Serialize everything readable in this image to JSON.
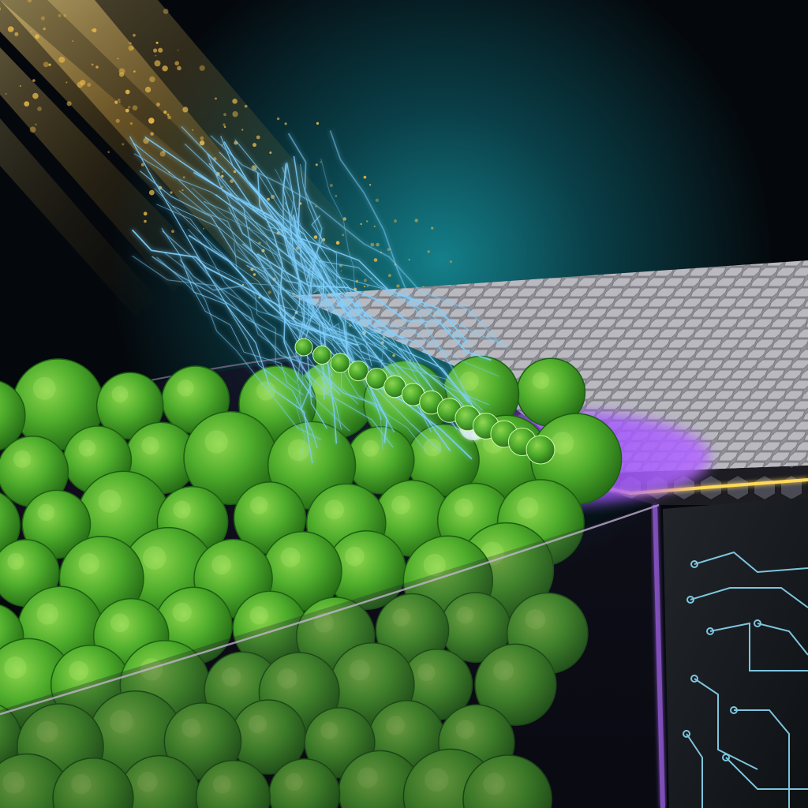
{
  "scene": {
    "kind": "illustration",
    "subjects": [
      "sunlight-rays",
      "gold-particles",
      "electric-filaments",
      "green-microbial-cells",
      "hexagonal-electrode-slab",
      "circuit-pattern"
    ]
  },
  "colors": {
    "background_dark": "#04080c",
    "background_teal_glow": "#0f6a72",
    "sunlight_gold": "#f2c85a",
    "particle_gold": "#e0b24a",
    "filament_blue": "#7fd0ff",
    "cell_green": "#4fae2c",
    "cell_green_dark": "#1d5f12",
    "purple_glow": "#8a3cff",
    "slab_top": "#a9a9ad",
    "slab_front_hex": "#3b3b44",
    "edge_gold": "#ffd95a",
    "circuit_cyan": "#8fe3ff"
  }
}
